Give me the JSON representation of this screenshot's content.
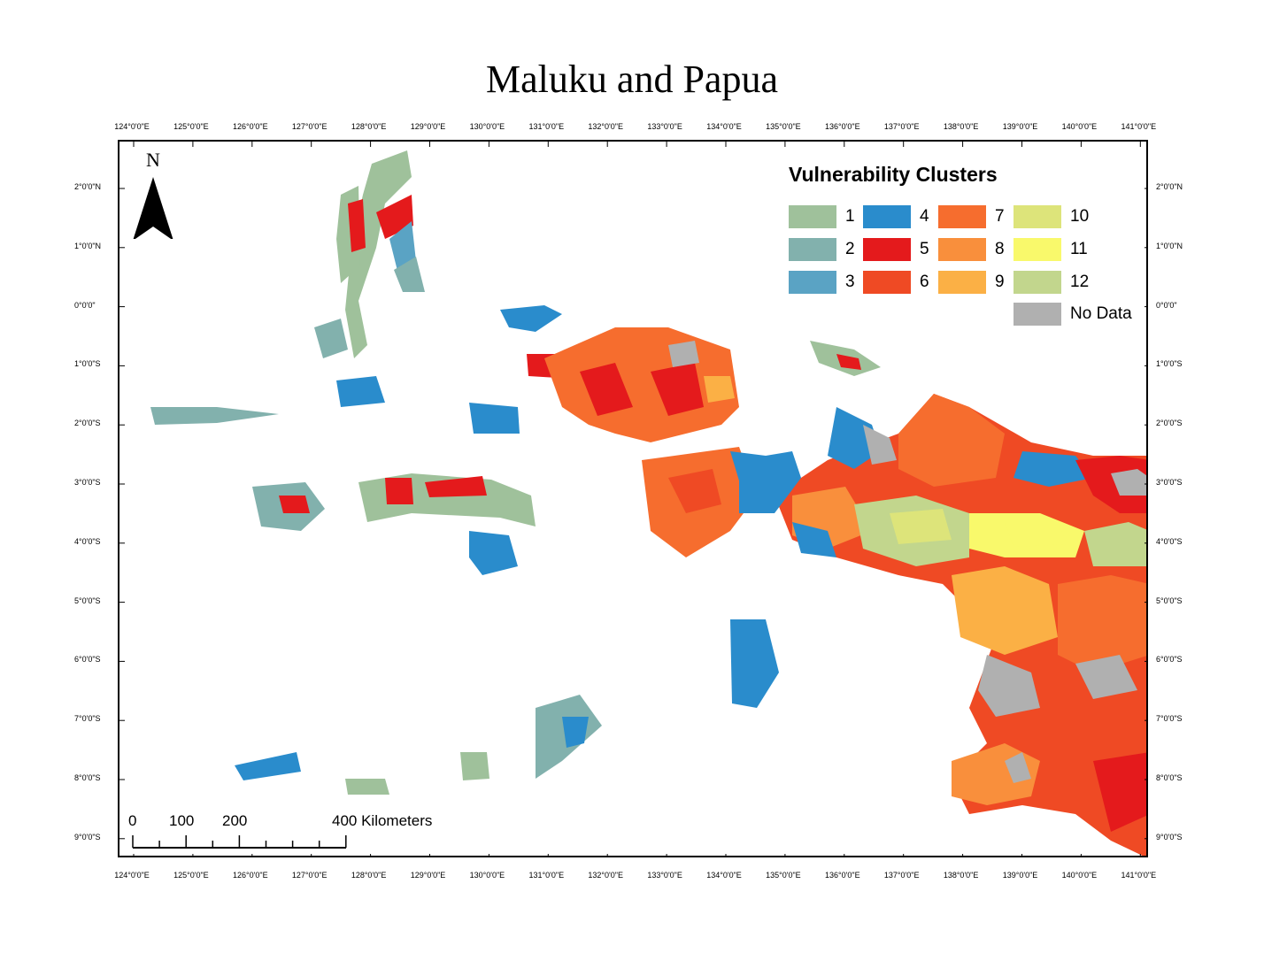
{
  "title": "Maluku and Papua",
  "longitude_ticks": [
    "124°0'0\"E",
    "125°0'0\"E",
    "126°0'0\"E",
    "127°0'0\"E",
    "128°0'0\"E",
    "129°0'0\"E",
    "130°0'0\"E",
    "131°0'0\"E",
    "132°0'0\"E",
    "133°0'0\"E",
    "134°0'0\"E",
    "135°0'0\"E",
    "136°0'0\"E",
    "137°0'0\"E",
    "138°0'0\"E",
    "139°0'0\"E",
    "140°0'0\"E",
    "141°0'0\"E"
  ],
  "latitude_ticks": [
    "2°0'0\"N",
    "1°0'0\"N",
    "0°0'0\"",
    "1°0'0\"S",
    "2°0'0\"S",
    "3°0'0\"S",
    "4°0'0\"S",
    "5°0'0\"S",
    "6°0'0\"S",
    "7°0'0\"S",
    "8°0'0\"S",
    "9°0'0\"S"
  ],
  "north_arrow": {
    "letter": "N",
    "icon": "north-arrow-icon"
  },
  "legend": {
    "title": "Vulnerability Clusters",
    "items": [
      {
        "label": "1",
        "color": "#9fc19b"
      },
      {
        "label": "2",
        "color": "#82b1ad"
      },
      {
        "label": "3",
        "color": "#5aa3c4"
      },
      {
        "label": "4",
        "color": "#2a8ccc"
      },
      {
        "label": "5",
        "color": "#e41a1c"
      },
      {
        "label": "6",
        "color": "#ef4a24"
      },
      {
        "label": "7",
        "color": "#f66d2e"
      },
      {
        "label": "8",
        "color": "#f98f3c"
      },
      {
        "label": "9",
        "color": "#fbb045"
      },
      {
        "label": "10",
        "color": "#dde47a"
      },
      {
        "label": "11",
        "color": "#f9f96b"
      },
      {
        "label": "12",
        "color": "#c2d68d"
      },
      {
        "label": "No Data",
        "color": "#b0b0b0"
      }
    ]
  },
  "scale_bar": {
    "labels": [
      "0",
      "100",
      "200",
      "400 Kilometers"
    ]
  }
}
